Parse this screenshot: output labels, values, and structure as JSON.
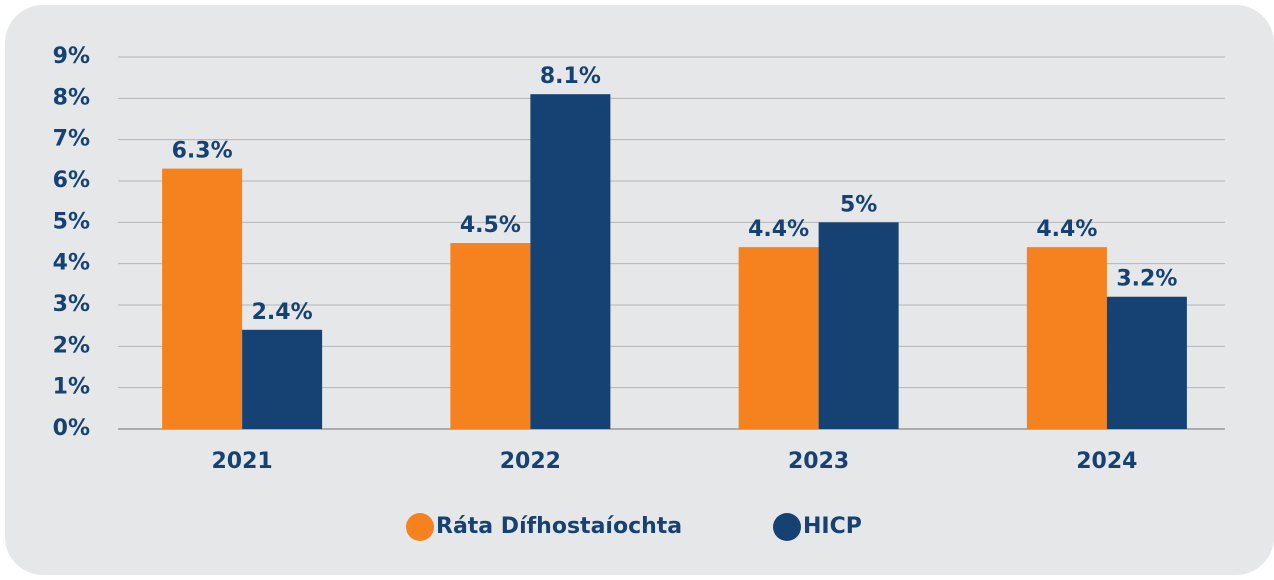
{
  "chart_data": {
    "type": "bar",
    "categories": [
      "2021",
      "2022",
      "2023",
      "2024"
    ],
    "series": [
      {
        "name": "Ráta Dífhostaíochta",
        "color": "#f5821f",
        "values": [
          6.3,
          4.5,
          4.4,
          4.4
        ],
        "value_labels": [
          "6.3%",
          "4.5%",
          "4.4%",
          "4.4%"
        ]
      },
      {
        "name": "HICP",
        "color": "#154273",
        "values": [
          2.4,
          8.1,
          5,
          3.2
        ],
        "value_labels": [
          "2.4%",
          "8.1%",
          "5%",
          "3.2%"
        ]
      }
    ],
    "ylim": [
      0,
      9
    ],
    "yticks": [
      {
        "value": 0,
        "label": "0%"
      },
      {
        "value": 1,
        "label": "1%"
      },
      {
        "value": 2,
        "label": "2%"
      },
      {
        "value": 3,
        "label": "3%"
      },
      {
        "value": 4,
        "label": "4%"
      },
      {
        "value": 5,
        "label": "5%"
      },
      {
        "value": 6,
        "label": "6%"
      },
      {
        "value": 7,
        "label": "7%"
      },
      {
        "value": 8,
        "label": "8%"
      },
      {
        "value": 9,
        "label": "9%"
      }
    ],
    "grid": true,
    "legend": "bottom"
  }
}
